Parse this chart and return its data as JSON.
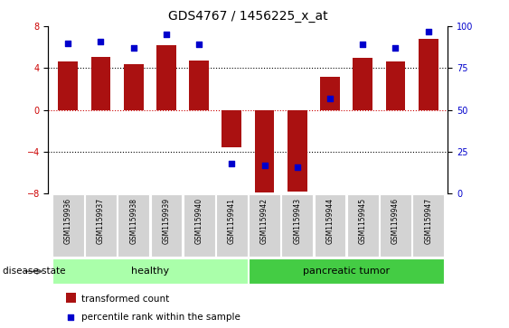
{
  "title": "GDS4767 / 1456225_x_at",
  "samples": [
    "GSM1159936",
    "GSM1159937",
    "GSM1159938",
    "GSM1159939",
    "GSM1159940",
    "GSM1159941",
    "GSM1159942",
    "GSM1159943",
    "GSM1159944",
    "GSM1159945",
    "GSM1159946",
    "GSM1159947"
  ],
  "bar_values": [
    4.6,
    5.1,
    4.4,
    6.2,
    4.7,
    -3.6,
    -7.9,
    -7.8,
    3.2,
    5.0,
    4.6,
    6.8
  ],
  "percentile_values": [
    90,
    91,
    87,
    95,
    89,
    18,
    17,
    16,
    57,
    89,
    87,
    97
  ],
  "bar_color": "#aa1111",
  "dot_color": "#0000cc",
  "ylim": [
    -8,
    8
  ],
  "yticks_left": [
    -8,
    -4,
    0,
    4,
    8
  ],
  "yticks_right": [
    0,
    25,
    50,
    75,
    100
  ],
  "groups": [
    {
      "label": "healthy",
      "start": 0,
      "end": 5,
      "color": "#aaffaa"
    },
    {
      "label": "pancreatic tumor",
      "start": 6,
      "end": 11,
      "color": "#44cc44"
    }
  ],
  "disease_state_label": "disease state",
  "legend_bar_label": "transformed count",
  "legend_dot_label": "percentile rank within the sample",
  "zero_line_color": "#cc0000",
  "title_fontsize": 10,
  "tick_fontsize": 7,
  "label_fontsize": 7.5,
  "group_label_fontsize": 8
}
